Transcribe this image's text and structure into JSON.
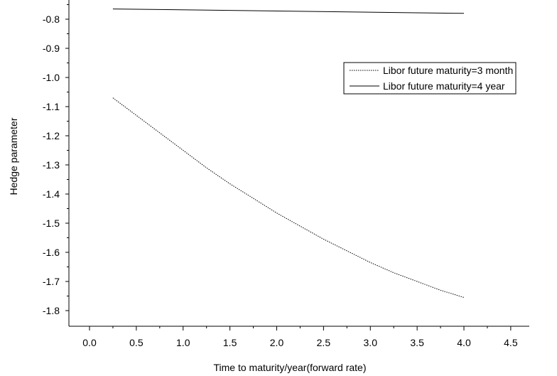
{
  "chart_data": {
    "type": "line",
    "title": "",
    "xlabel": "Time to maturity/year(forward rate)",
    "ylabel": "Hedge parameter",
    "xlim": [
      -0.25,
      4.5
    ],
    "ylim": [
      -1.85,
      -0.75
    ],
    "x_ticks": [
      "0.0",
      "0.5",
      "1.0",
      "1.5",
      "2.0",
      "2.5",
      "3.0",
      "3.5",
      "4.0",
      "4.5"
    ],
    "y_ticks": [
      "-0.8",
      "-0.9",
      "-1.0",
      "-1.1",
      "-1.2",
      "-1.3",
      "-1.4",
      "-1.5",
      "-1.6",
      "-1.7",
      "-1.8"
    ],
    "grid": false,
    "legend_position": "top-right",
    "series": [
      {
        "name": "Libor future maturity=3 month",
        "style": "dashed",
        "color": "#000000",
        "x": [
          0.25,
          0.5,
          0.75,
          1.0,
          1.25,
          1.5,
          1.75,
          2.0,
          2.25,
          2.5,
          2.75,
          3.0,
          3.25,
          3.5,
          3.75,
          4.0
        ],
        "y": [
          -1.07,
          -1.13,
          -1.19,
          -1.25,
          -1.31,
          -1.365,
          -1.415,
          -1.465,
          -1.51,
          -1.555,
          -1.595,
          -1.635,
          -1.67,
          -1.7,
          -1.73,
          -1.755
        ]
      },
      {
        "name": "Libor future maturity=4 year",
        "style": "solid",
        "color": "#000000",
        "x": [
          0.25,
          4.0
        ],
        "y": [
          -0.765,
          -0.78
        ]
      }
    ]
  }
}
